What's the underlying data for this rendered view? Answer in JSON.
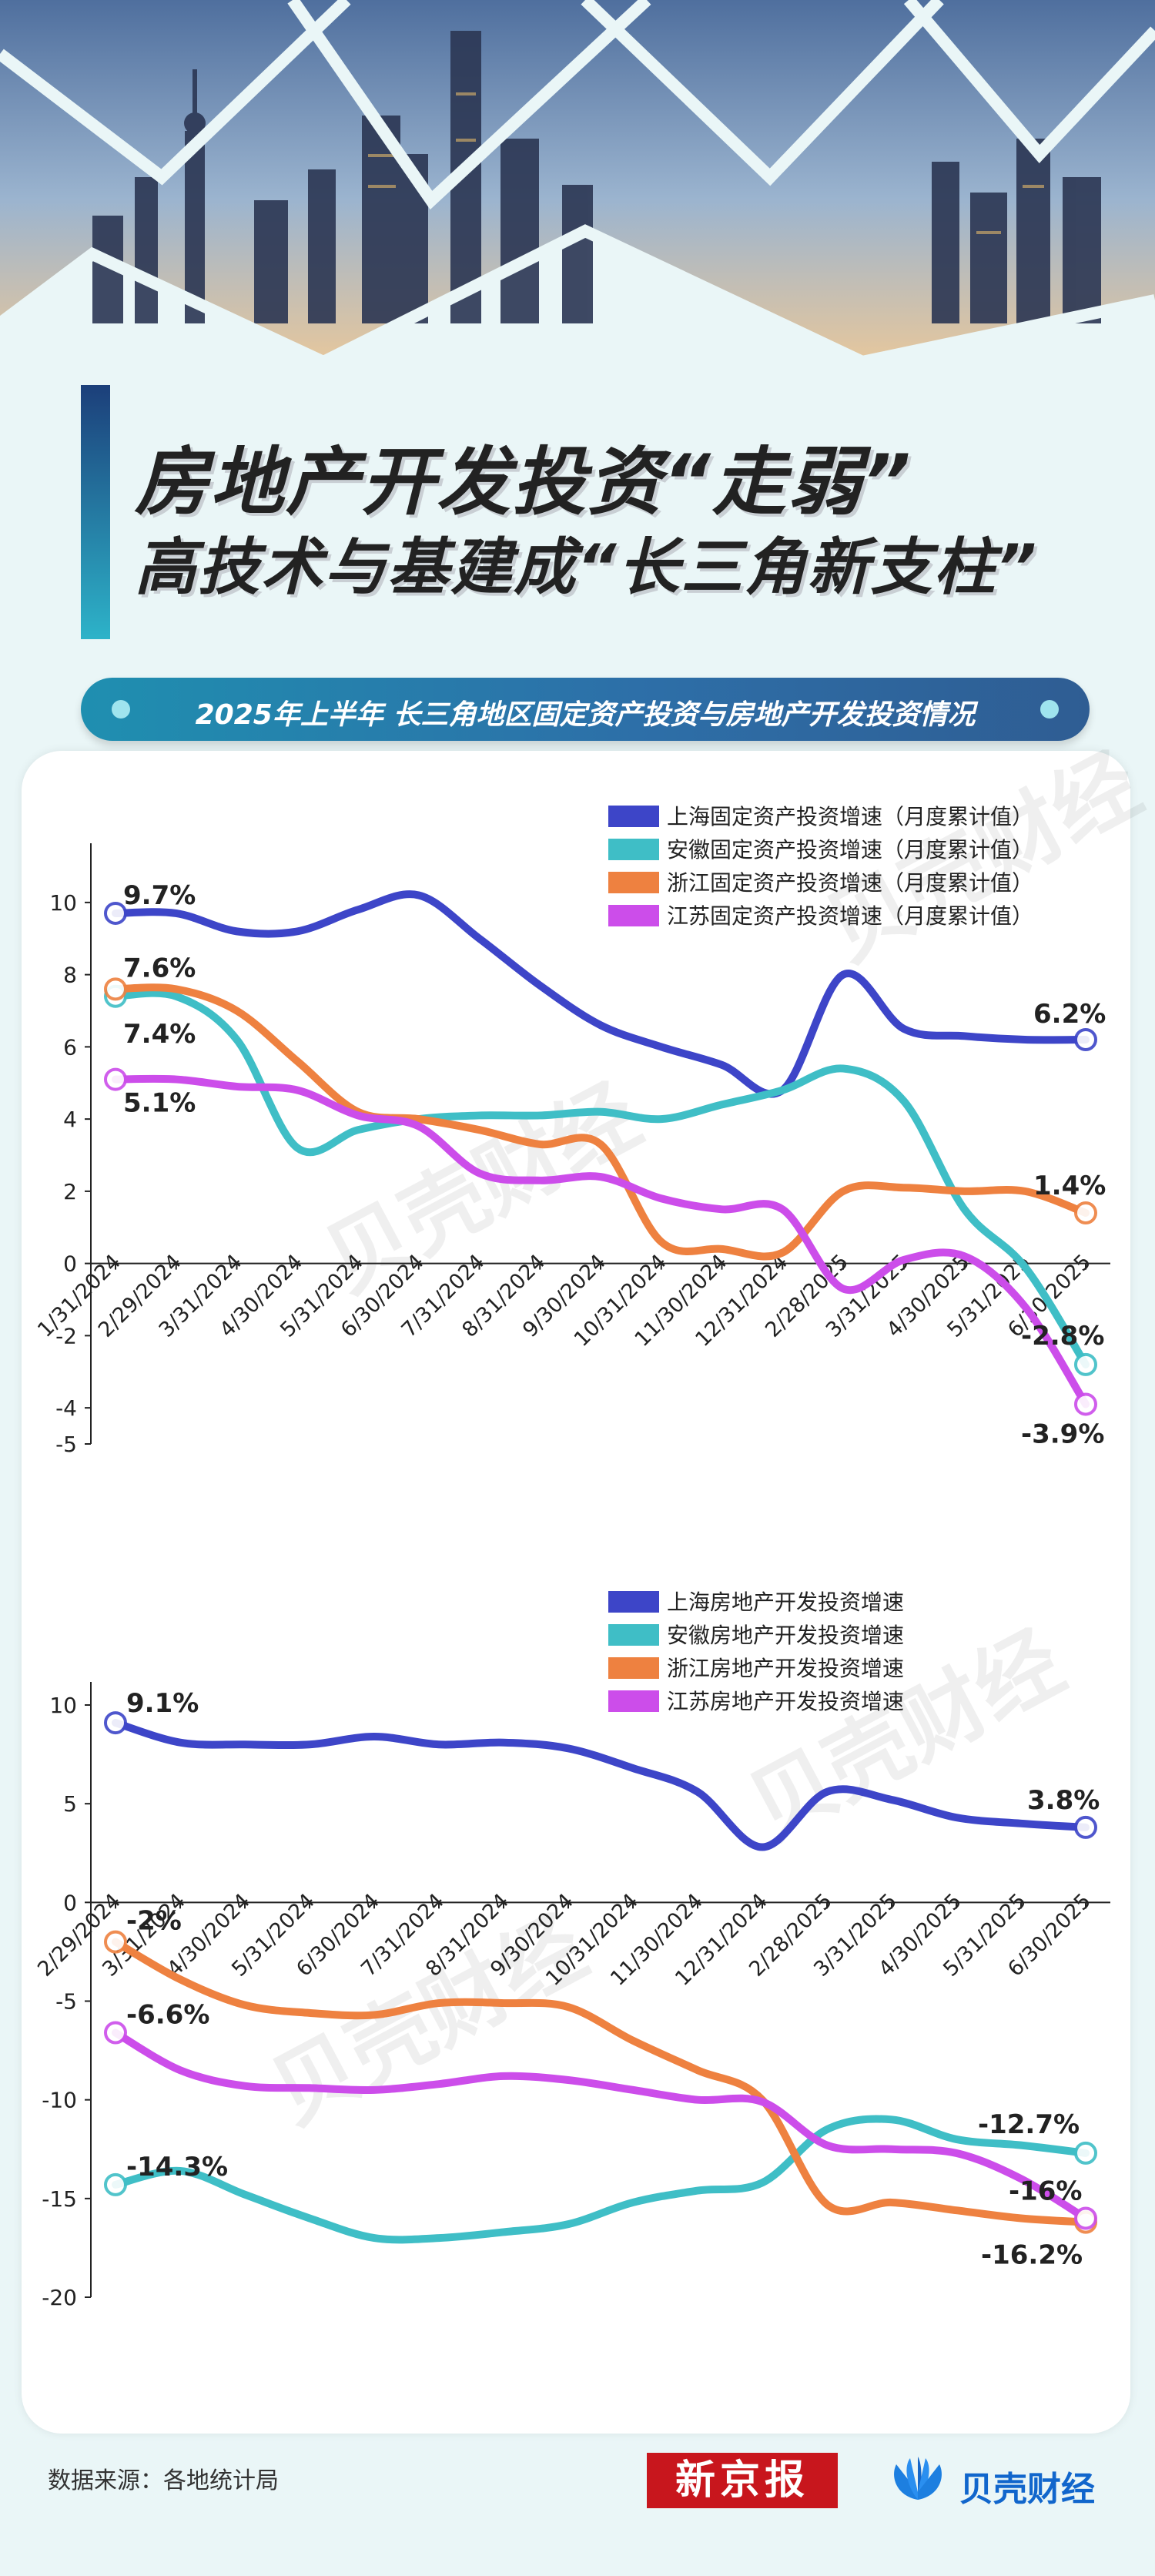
{
  "title": {
    "line1": "房地产开发投资“走弱”",
    "line2": "高技术与基建成“长三角新支柱”"
  },
  "subtitle": "2025年上半年 长三角地区固定资产投资与房地产开发投资情况",
  "watermark": "贝壳财经",
  "footer": {
    "source": "数据来源：各地统计局",
    "logo_left": "新京报",
    "logo_right": "贝壳财经"
  },
  "colors": {
    "shanghai": "#3d45c8",
    "anhui": "#3fbec6",
    "zhejiang": "#ee8140",
    "jiangsu": "#cc4dea"
  },
  "chart_data": [
    {
      "type": "line",
      "x": [
        "1/31/2024",
        "2/29/2024",
        "3/31/2024",
        "4/30/2024",
        "5/31/2024",
        "6/30/2024",
        "7/31/2024",
        "8/31/2024",
        "9/30/2024",
        "10/31/2024",
        "11/30/2024",
        "12/31/2024",
        "2/28/2025",
        "3/31/2025",
        "4/30/2025",
        "5/31/2025",
        "6/30/2025"
      ],
      "ylim": [
        -5,
        11
      ],
      "yticks": [
        10,
        8,
        6,
        4,
        2,
        0,
        -2,
        -4,
        -5
      ],
      "legend_position": "top-right",
      "series": [
        {
          "name": "上海固定资产投资增速（月度累计值）",
          "color_key": "shanghai",
          "values": [
            9.7,
            9.7,
            9.2,
            9.2,
            9.8,
            10.2,
            9.0,
            7.7,
            6.6,
            6.0,
            5.5,
            4.8,
            8.0,
            6.5,
            6.3,
            6.2,
            6.2
          ],
          "labels": [
            {
              "i": 0,
              "text": "9.7%"
            },
            {
              "i": 16,
              "text": "6.2%"
            }
          ]
        },
        {
          "name": "安徽固定资产投资增速（月度累计值）",
          "color_key": "anhui",
          "values": [
            7.4,
            7.4,
            6.2,
            3.2,
            3.7,
            4.0,
            4.1,
            4.1,
            4.2,
            4.0,
            4.4,
            4.8,
            5.4,
            4.5,
            1.5,
            -0.1,
            -2.8
          ],
          "labels": [
            {
              "i": 0,
              "text": "7.4%"
            },
            {
              "i": 16,
              "text": "-2.8%"
            }
          ]
        },
        {
          "name": "浙江固定资产投资增速（月度累计值）",
          "color_key": "zhejiang",
          "values": [
            7.6,
            7.6,
            7.0,
            5.6,
            4.2,
            4.0,
            3.7,
            3.3,
            3.3,
            0.6,
            0.4,
            0.3,
            2.0,
            2.1,
            2.0,
            2.0,
            1.4
          ],
          "labels": [
            {
              "i": 0,
              "text": "7.6%"
            },
            {
              "i": 16,
              "text": "1.4%"
            }
          ]
        },
        {
          "name": "江苏固定资产投资增速（月度累计值）",
          "color_key": "jiangsu",
          "values": [
            5.1,
            5.1,
            4.9,
            4.8,
            4.1,
            3.8,
            2.5,
            2.3,
            2.4,
            1.8,
            1.5,
            1.5,
            -0.7,
            0.1,
            0.2,
            -1.2,
            -3.9
          ],
          "labels": [
            {
              "i": 0,
              "text": "5.1%"
            },
            {
              "i": 16,
              "text": "-3.9%"
            }
          ]
        }
      ]
    },
    {
      "type": "line",
      "x": [
        "2/29/2024",
        "3/31/2024",
        "4/30/2024",
        "5/31/2024",
        "6/30/2024",
        "7/31/2024",
        "8/31/2024",
        "9/30/2024",
        "10/31/2024",
        "11/30/2024",
        "12/31/2024",
        "2/28/2025",
        "3/31/2025",
        "4/30/2025",
        "5/31/2025",
        "6/30/2025"
      ],
      "ylim": [
        -20,
        10
      ],
      "yticks": [
        10,
        5,
        0,
        -5,
        -10,
        -15,
        -20
      ],
      "legend_position": "top-right",
      "series": [
        {
          "name": "上海房地产开发投资增速",
          "color_key": "shanghai",
          "values": [
            9.1,
            8.1,
            8.0,
            8.0,
            8.4,
            8.0,
            8.1,
            7.8,
            6.8,
            5.6,
            2.8,
            5.6,
            5.2,
            4.3,
            4.0,
            3.8
          ],
          "labels": [
            {
              "i": 0,
              "text": "9.1%"
            },
            {
              "i": 15,
              "text": "3.8%"
            }
          ]
        },
        {
          "name": "安徽房地产开发投资增速",
          "color_key": "anhui",
          "values": [
            -14.3,
            -13.6,
            -14.8,
            -16.0,
            -17.0,
            -17.0,
            -16.7,
            -16.3,
            -15.2,
            -14.6,
            -14.2,
            -11.5,
            -11.0,
            -12.0,
            -12.3,
            -12.7
          ],
          "labels": [
            {
              "i": 0,
              "text": "-14.3%"
            },
            {
              "i": 15,
              "text": "-12.7%"
            }
          ]
        },
        {
          "name": "浙江房地产开发投资增速",
          "color_key": "zhejiang",
          "values": [
            -2.0,
            -3.9,
            -5.2,
            -5.6,
            -5.7,
            -5.1,
            -5.1,
            -5.3,
            -7.0,
            -8.5,
            -10.0,
            -15.3,
            -15.2,
            -15.6,
            -16.0,
            -16.2
          ],
          "labels": [
            {
              "i": 0,
              "text": "-2%"
            },
            {
              "i": 15,
              "text": "-16.2%"
            }
          ]
        },
        {
          "name": "江苏房地产开发投资增速",
          "color_key": "jiangsu",
          "values": [
            -6.6,
            -8.5,
            -9.3,
            -9.4,
            -9.5,
            -9.2,
            -8.8,
            -9.0,
            -9.5,
            -10.0,
            -10.1,
            -12.3,
            -12.5,
            -12.7,
            -14.0,
            -16.0
          ],
          "labels": [
            {
              "i": 0,
              "text": "-6.6%"
            },
            {
              "i": 15,
              "text": "-16%"
            }
          ]
        }
      ]
    }
  ]
}
